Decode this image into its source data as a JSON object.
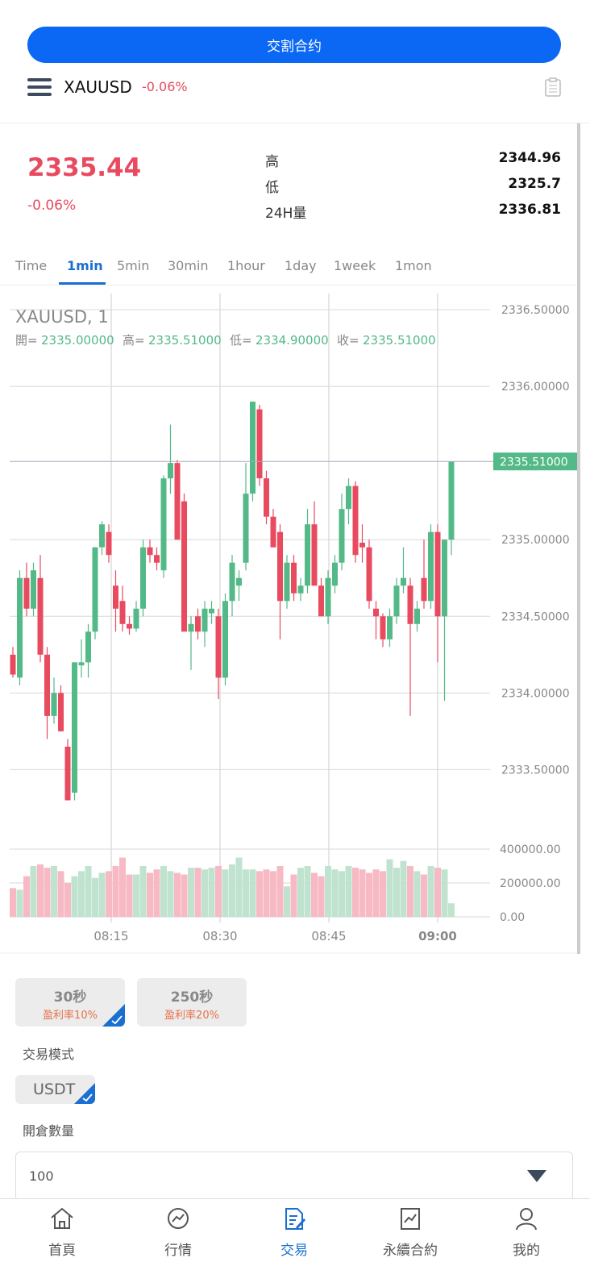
{
  "top_button": "交割合约",
  "header": {
    "symbol": "XAUUSD",
    "change": "-0.06%"
  },
  "quote": {
    "price": "2335.44",
    "change": "-0.06%",
    "stats": [
      {
        "label": "高",
        "value": "2344.96"
      },
      {
        "label": "低",
        "value": "2325.7"
      },
      {
        "label": "24H量",
        "value": "2336.81"
      }
    ]
  },
  "tabs": [
    "Time",
    "1min",
    "5min",
    "30min",
    "1hour",
    "1day",
    "1week",
    "1mon"
  ],
  "active_tab": 1,
  "chart": {
    "type": "candlestick",
    "title": "XAUUSD, 1",
    "ohlc_legend": [
      {
        "label": "開=",
        "value": "2335.00000"
      },
      {
        "label": "高=",
        "value": "2335.51000"
      },
      {
        "label": "低=",
        "value": "2334.90000"
      },
      {
        "label": "收=",
        "value": "2335.51000"
      }
    ],
    "open": [
      2334.25,
      2334.1,
      2334.75,
      2334.55,
      2334.75,
      2334.25,
      2333.85,
      2334.0,
      2333.65,
      2333.35,
      2334.18,
      2334.2,
      2334.4,
      2334.95,
      2335.05,
      2334.7,
      2334.6,
      2334.45,
      2334.42,
      2334.55,
      2334.95,
      2334.9,
      2334.8,
      2335.4,
      2335.5,
      2335.25,
      2334.4,
      2334.5,
      2334.4,
      2334.52,
      2334.5,
      2334.1,
      2334.6,
      2334.7,
      2334.85,
      2335.3,
      2335.85,
      2335.4,
      2335.15,
      2335.05,
      2334.6,
      2334.85,
      2334.65,
      2334.7,
      2335.1,
      2334.7,
      2334.5,
      2334.7,
      2334.85,
      2335.2,
      2335.35,
      2334.98,
      2334.95,
      2334.55,
      2334.5,
      2334.35,
      2334.5,
      2334.7,
      2334.7,
      2334.45,
      2334.75,
      2334.6,
      2335.05,
      2334.5,
      2335.0
    ],
    "high": [
      2334.3,
      2334.8,
      2334.85,
      2334.85,
      2334.9,
      2334.3,
      2334.1,
      2334.05,
      2333.7,
      2334.2,
      2334.35,
      2334.45,
      2334.95,
      2335.12,
      2335.1,
      2334.8,
      2334.7,
      2334.5,
      2334.6,
      2335.0,
      2335.0,
      2334.95,
      2335.42,
      2335.75,
      2335.52,
      2335.3,
      2334.5,
      2334.55,
      2334.6,
      2334.6,
      2334.55,
      2334.65,
      2334.9,
      2334.8,
      2335.5,
      2335.9,
      2335.88,
      2335.45,
      2335.2,
      2335.1,
      2334.9,
      2334.9,
      2334.75,
      2335.2,
      2335.25,
      2334.75,
      2334.8,
      2334.9,
      2335.3,
      2335.4,
      2335.38,
      2335.1,
      2335.0,
      2334.6,
      2334.52,
      2334.55,
      2334.75,
      2334.95,
      2334.75,
      2334.6,
      2335.0,
      2335.1,
      2335.1,
      2335.0,
      2335.51
    ],
    "low": [
      2334.1,
      2334.05,
      2334.5,
      2334.5,
      2334.2,
      2333.7,
      2333.8,
      2333.75,
      2333.3,
      2333.3,
      2334.1,
      2334.1,
      2334.35,
      2334.9,
      2334.85,
      2334.4,
      2334.4,
      2334.38,
      2334.4,
      2334.5,
      2334.85,
      2334.8,
      2334.75,
      2335.3,
      2335.0,
      2334.4,
      2334.15,
      2334.35,
      2334.3,
      2334.45,
      2333.96,
      2334.05,
      2334.5,
      2334.6,
      2334.8,
      2335.25,
      2335.35,
      2335.1,
      2334.95,
      2334.35,
      2334.55,
      2334.6,
      2334.6,
      2334.65,
      2334.7,
      2334.5,
      2334.45,
      2334.65,
      2334.8,
      2335.1,
      2334.85,
      2334.85,
      2334.55,
      2334.35,
      2334.3,
      2334.3,
      2334.45,
      2334.65,
      2333.85,
      2334.4,
      2334.55,
      2334.55,
      2334.2,
      2333.95,
      2334.9
    ],
    "close": [
      2334.12,
      2334.75,
      2334.55,
      2334.8,
      2334.25,
      2333.85,
      2334.0,
      2333.75,
      2333.3,
      2334.2,
      2334.2,
      2334.4,
      2334.95,
      2335.1,
      2334.9,
      2334.55,
      2334.45,
      2334.42,
      2334.55,
      2334.95,
      2334.9,
      2334.85,
      2335.4,
      2335.5,
      2335.0,
      2334.4,
      2334.45,
      2334.4,
      2334.55,
      2334.55,
      2334.1,
      2334.6,
      2334.85,
      2334.75,
      2335.3,
      2335.9,
      2335.4,
      2335.15,
      2334.95,
      2334.6,
      2334.85,
      2334.65,
      2334.7,
      2335.1,
      2334.7,
      2334.5,
      2334.75,
      2334.85,
      2335.2,
      2335.35,
      2334.9,
      2334.95,
      2334.6,
      2334.5,
      2334.35,
      2334.5,
      2334.7,
      2334.75,
      2334.45,
      2334.55,
      2334.6,
      2335.05,
      2334.5,
      2335.0,
      2335.51
    ],
    "volume": [
      170000,
      160000,
      240000,
      300000,
      310000,
      290000,
      300000,
      270000,
      200000,
      240000,
      270000,
      300000,
      230000,
      260000,
      270000,
      300000,
      350000,
      250000,
      250000,
      300000,
      260000,
      280000,
      300000,
      270000,
      260000,
      250000,
      290000,
      290000,
      280000,
      290000,
      300000,
      280000,
      310000,
      350000,
      280000,
      280000,
      270000,
      280000,
      270000,
      300000,
      180000,
      250000,
      290000,
      300000,
      260000,
      240000,
      300000,
      280000,
      270000,
      300000,
      290000,
      280000,
      260000,
      280000,
      270000,
      340000,
      290000,
      330000,
      300000,
      270000,
      250000,
      300000,
      290000,
      280000,
      80000
    ],
    "ylim": [
      2333.05,
      2336.6
    ],
    "yticks": [
      {
        "value": 2333.5,
        "label": "2333.50000"
      },
      {
        "value": 2334,
        "label": "2334.00000"
      },
      {
        "value": 2334.5,
        "label": "2334.50000"
      },
      {
        "value": 2335,
        "label": "2335.00000"
      },
      {
        "value": 2336,
        "label": "2336.00000"
      },
      {
        "value": 2336.5,
        "label": "2336.50000"
      }
    ],
    "last": {
      "value": 2335.51,
      "label": "2335.51000"
    },
    "vlim": [
      0,
      400000
    ],
    "vticks": [
      {
        "value": 0,
        "label": "0.00"
      },
      {
        "value": 200000,
        "label": "200000.00"
      },
      {
        "value": 400000,
        "label": "400000.00"
      }
    ],
    "xticks": [
      "08:15",
      "08:30",
      "08:45",
      "09:00"
    ],
    "up_color": "#53b987",
    "down_color": "#e84a5f",
    "up_volume_color": "#bfe3cf",
    "down_volume_color": "#f7b9c3"
  },
  "options": {
    "periods": [
      {
        "label": "30秒",
        "rate": "盈利率10%"
      },
      {
        "label": "250秒",
        "rate": "盈利率20%"
      }
    ],
    "mode_label": "交易模式",
    "currency": "USDT",
    "qty_label": "開倉數量",
    "qty": "100"
  },
  "nav": [
    "首頁",
    "行情",
    "交易",
    "永續合約",
    "我的"
  ],
  "active_nav": 2
}
